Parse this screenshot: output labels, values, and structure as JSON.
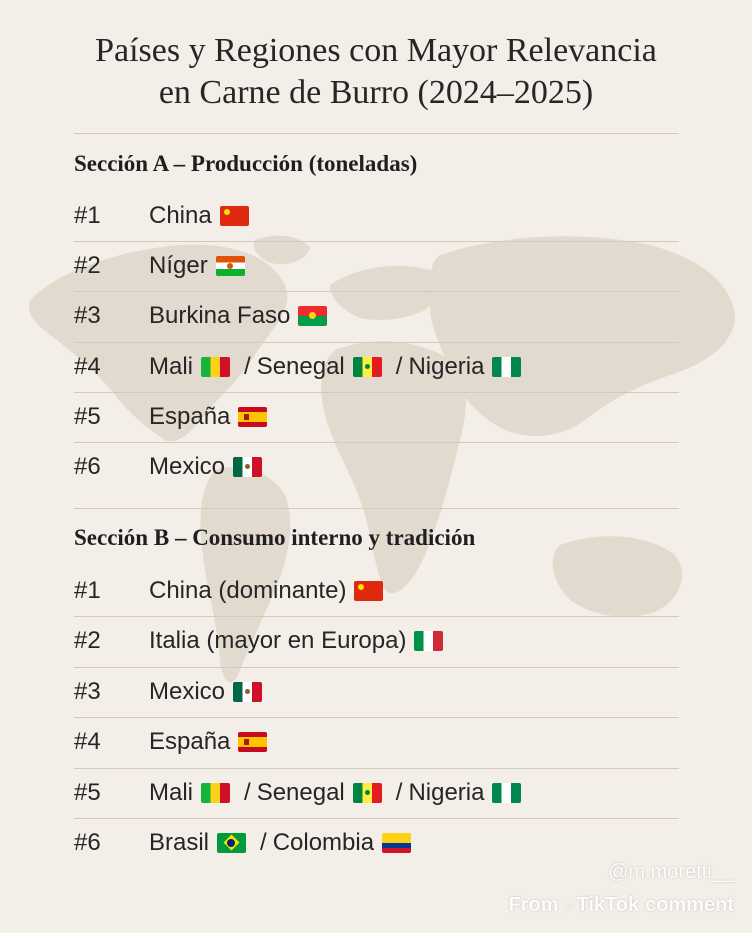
{
  "title_line1": "Países y Regiones con Mayor Relevancia",
  "title_line2": "en Carne de Burro (2024–2025)",
  "section_a": {
    "heading": "Sección A – Producción (toneladas)",
    "rows": [
      {
        "rank": "#1",
        "entries": [
          {
            "name": "China",
            "flag": "cn"
          }
        ]
      },
      {
        "rank": "#2",
        "entries": [
          {
            "name": "Níger",
            "flag": "ne"
          }
        ]
      },
      {
        "rank": "#3",
        "entries": [
          {
            "name": "Burkina Faso",
            "flag": "bf"
          }
        ]
      },
      {
        "rank": "#4",
        "entries": [
          {
            "name": "Mali",
            "flag": "ml"
          },
          {
            "name": "Senegal",
            "flag": "sn"
          },
          {
            "name": "Nigeria",
            "flag": "ng"
          }
        ]
      },
      {
        "rank": "#5",
        "entries": [
          {
            "name": "España",
            "flag": "es"
          }
        ]
      },
      {
        "rank": "#6",
        "entries": [
          {
            "name": "Mexico",
            "flag": "mx"
          }
        ]
      }
    ]
  },
  "section_b": {
    "heading": "Sección B – Consumo interno y tradición",
    "rows": [
      {
        "rank": "#1",
        "entries": [
          {
            "name": "China (dominante)",
            "flag": "cn"
          }
        ]
      },
      {
        "rank": "#2",
        "entries": [
          {
            "name": "Italia (mayor en Europa)",
            "flag": "it"
          }
        ]
      },
      {
        "rank": "#3",
        "entries": [
          {
            "name": "Mexico",
            "flag": "mx"
          }
        ]
      },
      {
        "rank": "#4",
        "entries": [
          {
            "name": "España",
            "flag": "es"
          }
        ]
      },
      {
        "rank": "#5",
        "entries": [
          {
            "name": "Mali",
            "flag": "ml"
          },
          {
            "name": "Senegal",
            "flag": "sn"
          },
          {
            "name": "Nigeria",
            "flag": "ng"
          }
        ]
      },
      {
        "rank": "#6",
        "entries": [
          {
            "name": "Brasil",
            "flag": "br"
          },
          {
            "name": "Colombia",
            "flag": "co"
          }
        ]
      }
    ]
  },
  "separator": "/",
  "watermark": {
    "user": "@m.moretti__",
    "from": "From",
    "platform": "TikTok",
    "suffix": "comment"
  },
  "colors": {
    "background": "#f3eee7",
    "rule": "#d4c9bd",
    "text": "#262626",
    "map": "#d9cfc3"
  }
}
